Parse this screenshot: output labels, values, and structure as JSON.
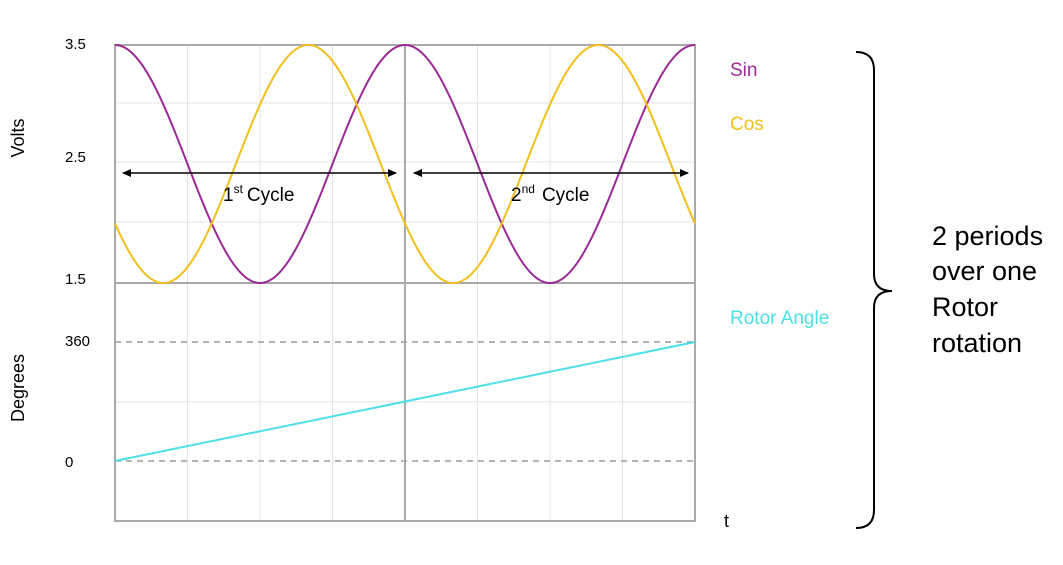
{
  "chart_data": {
    "type": "line",
    "x_axis_label": "t",
    "periods": 2,
    "colors": {
      "sin": "#9c2a96",
      "cos": "#f2bf1b",
      "rotor": "#4ddfe6",
      "grid": "#e4e4e4",
      "frame": "#a9a9a9",
      "dashed": "#9a9a9a"
    },
    "top_panel": {
      "ylabel": "Volts",
      "ylim": [
        1.5,
        3.5
      ],
      "ticks": [
        {
          "value": 3.5,
          "label": "3.5"
        },
        {
          "value": 2.5,
          "label": "2.5"
        },
        {
          "value": 1.5,
          "label": "1.5"
        }
      ],
      "series": [
        {
          "name": "Sin",
          "offset": 2.5,
          "amplitude": 1.0,
          "phase_deg": 90
        },
        {
          "name": "Cos",
          "offset": 2.5,
          "amplitude": 1.0,
          "phase_deg": 210
        }
      ],
      "cycles": [
        {
          "number": "1",
          "sup": "st",
          "word": "Cycle"
        },
        {
          "number": "2",
          "sup": "nd",
          "word": "Cycle"
        }
      ]
    },
    "bottom_panel": {
      "ylabel": "Degrees",
      "ticks": [
        {
          "value": 360,
          "label": "360"
        },
        {
          "value": 0,
          "label": "0"
        }
      ],
      "series": [
        {
          "name": "Rotor Angle",
          "start": 0,
          "end": 360
        }
      ]
    },
    "annotation": {
      "lines": [
        "2 periods",
        "over one",
        "Rotor",
        "rotation"
      ]
    }
  }
}
